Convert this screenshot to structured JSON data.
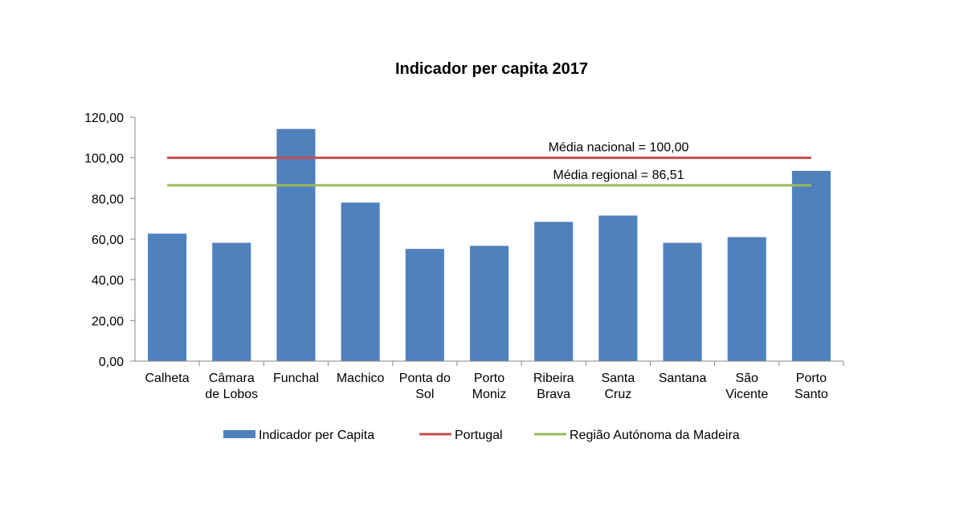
{
  "chart_data": {
    "type": "bar",
    "title": "Indicador per capita 2017",
    "categories": [
      [
        "Calheta"
      ],
      [
        "Câmara",
        "de Lobos"
      ],
      [
        "Funchal"
      ],
      [
        "Machico"
      ],
      [
        "Ponta do",
        "Sol"
      ],
      [
        "Porto",
        "Moniz"
      ],
      [
        "Ribeira",
        "Brava"
      ],
      [
        "Santa",
        "Cruz"
      ],
      [
        "Santana"
      ],
      [
        "São",
        "Vicente"
      ],
      [
        "Porto",
        "Santo"
      ]
    ],
    "series": [
      {
        "name": "Indicador per Capita",
        "type": "bar",
        "color": "#4F81BD",
        "values": [
          62.7,
          58.2,
          114.2,
          78.0,
          55.2,
          56.7,
          68.5,
          71.6,
          58.2,
          61.0,
          93.6
        ]
      }
    ],
    "reference_lines": [
      {
        "name": "Portugal",
        "value": 100.0,
        "color": "#C0504D",
        "label": "Média nacional = 100,00"
      },
      {
        "name": "Região Autónoma da Madeira",
        "value": 86.51,
        "color": "#9BBB59",
        "label": "Média regional = 86,51"
      }
    ],
    "yaxis": {
      "min": 0,
      "max": 120,
      "step": 20,
      "tick_labels": [
        "0,00",
        "20,00",
        "40,00",
        "60,00",
        "80,00",
        "100,00",
        "120,00"
      ]
    },
    "legend": {
      "position": "bottom",
      "entries": [
        {
          "label": "Indicador per Capita",
          "kind": "bar",
          "color": "#4F81BD"
        },
        {
          "label": "Portugal",
          "kind": "line",
          "color": "#C0504D"
        },
        {
          "label": "Região Autónoma da Madeira",
          "kind": "line",
          "color": "#9BBB59"
        }
      ]
    },
    "xlabel": "",
    "ylabel": ""
  }
}
